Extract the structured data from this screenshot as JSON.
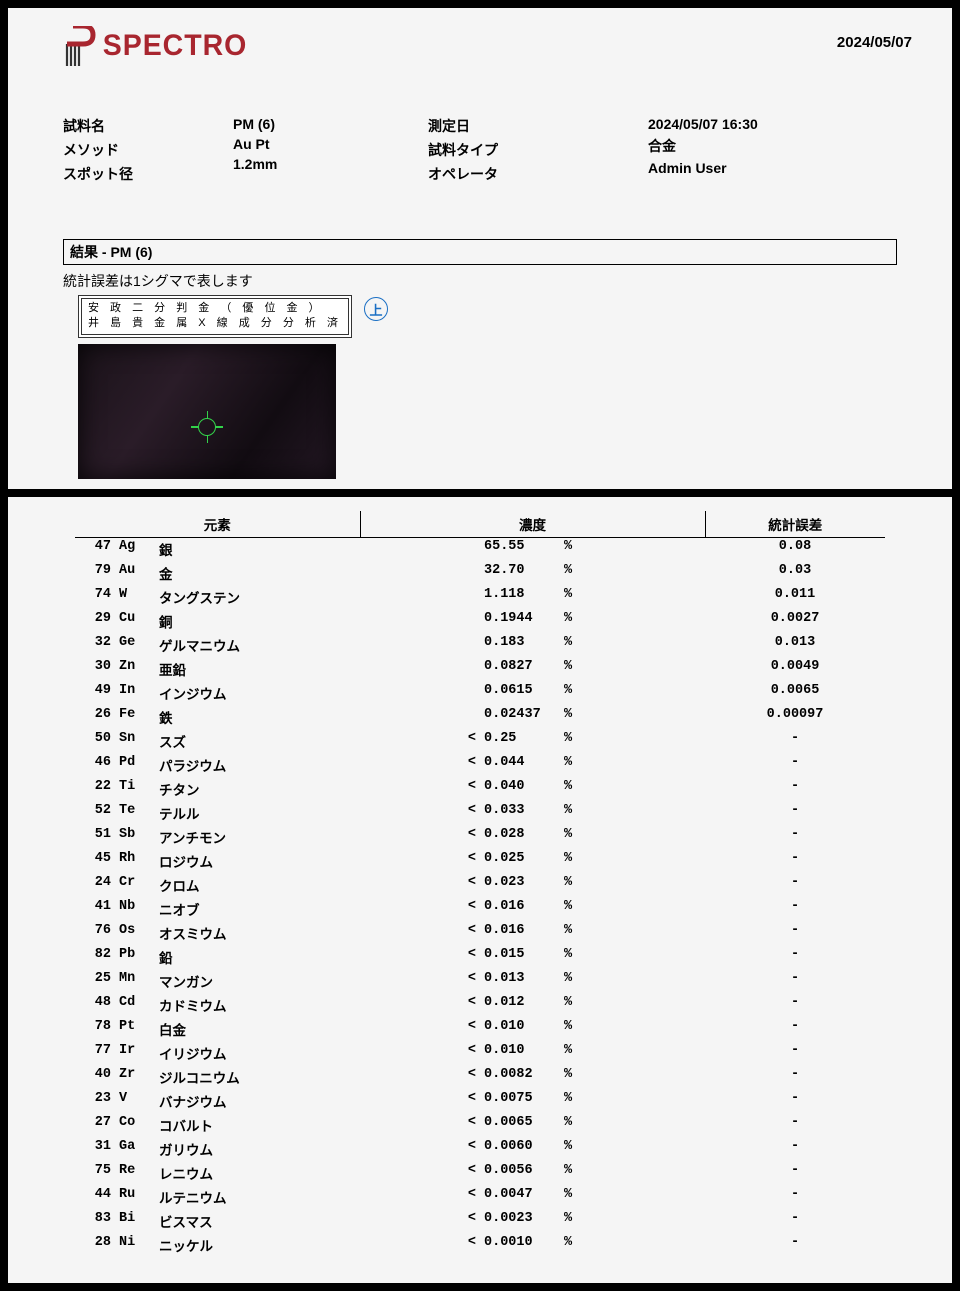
{
  "brand": "SPECTRO",
  "colors": {
    "brand": "#a8262f",
    "crosshair": "#33d24a",
    "badge": "#1a6fc4"
  },
  "header_date": "2024/05/07",
  "meta": {
    "labels_left": [
      "試料名",
      "メソッド",
      "スポット径"
    ],
    "values_left": [
      "PM (6)",
      "Au Pt",
      "1.2mm"
    ],
    "labels_right": [
      "測定日",
      "試料タイプ",
      "オペレータ"
    ],
    "values_right": [
      "2024/05/07 16:30",
      "合金",
      "Admin User"
    ]
  },
  "result_title": "結果 - PM (6)",
  "sigma_note": "統計誤差は1シグマで表します",
  "specimen_label_line1": "安 政 二 分 判 金 （ 優 位 金 ）",
  "specimen_label_line2": "井 島 貴 金 属 X 線 成 分 分 析 済",
  "badge_char": "上",
  "table": {
    "headers": {
      "element": "元素",
      "concentration": "濃度",
      "stat_error": "統計誤差"
    },
    "unit": "%",
    "rows": [
      {
        "z": "47",
        "sym": "Ag",
        "name": "銀",
        "lt": "",
        "val": "65.55",
        "err": "0.08"
      },
      {
        "z": "79",
        "sym": "Au",
        "name": "金",
        "lt": "",
        "val": "32.70",
        "err": "0.03"
      },
      {
        "z": "74",
        "sym": "W",
        "name": "タングステン",
        "lt": "",
        "val": "1.118",
        "err": "0.011"
      },
      {
        "z": "29",
        "sym": "Cu",
        "name": "銅",
        "lt": "",
        "val": "0.1944",
        "err": "0.0027"
      },
      {
        "z": "32",
        "sym": "Ge",
        "name": "ゲルマニウム",
        "lt": "",
        "val": "0.183",
        "err": "0.013"
      },
      {
        "z": "30",
        "sym": "Zn",
        "name": "亜鉛",
        "lt": "",
        "val": "0.0827",
        "err": "0.0049"
      },
      {
        "z": "49",
        "sym": "In",
        "name": "インジウム",
        "lt": "",
        "val": "0.0615",
        "err": "0.0065"
      },
      {
        "z": "26",
        "sym": "Fe",
        "name": "鉄",
        "lt": "",
        "val": "0.02437",
        "err": "0.00097"
      },
      {
        "z": "50",
        "sym": "Sn",
        "name": "スズ",
        "lt": "<",
        "val": "0.25",
        "err": "-"
      },
      {
        "z": "46",
        "sym": "Pd",
        "name": "パラジウム",
        "lt": "<",
        "val": "0.044",
        "err": "-"
      },
      {
        "z": "22",
        "sym": "Ti",
        "name": "チタン",
        "lt": "<",
        "val": "0.040",
        "err": "-"
      },
      {
        "z": "52",
        "sym": "Te",
        "name": "テルル",
        "lt": "<",
        "val": "0.033",
        "err": "-"
      },
      {
        "z": "51",
        "sym": "Sb",
        "name": "アンチモン",
        "lt": "<",
        "val": "0.028",
        "err": "-"
      },
      {
        "z": "45",
        "sym": "Rh",
        "name": "ロジウム",
        "lt": "<",
        "val": "0.025",
        "err": "-"
      },
      {
        "z": "24",
        "sym": "Cr",
        "name": "クロム",
        "lt": "<",
        "val": "0.023",
        "err": "-"
      },
      {
        "z": "41",
        "sym": "Nb",
        "name": "ニオブ",
        "lt": "<",
        "val": "0.016",
        "err": "-"
      },
      {
        "z": "76",
        "sym": "Os",
        "name": "オスミウム",
        "lt": "<",
        "val": "0.016",
        "err": "-"
      },
      {
        "z": "82",
        "sym": "Pb",
        "name": "鉛",
        "lt": "<",
        "val": "0.015",
        "err": "-"
      },
      {
        "z": "25",
        "sym": "Mn",
        "name": "マンガン",
        "lt": "<",
        "val": "0.013",
        "err": "-"
      },
      {
        "z": "48",
        "sym": "Cd",
        "name": "カドミウム",
        "lt": "<",
        "val": "0.012",
        "err": "-"
      },
      {
        "z": "78",
        "sym": "Pt",
        "name": "白金",
        "lt": "<",
        "val": "0.010",
        "err": "-"
      },
      {
        "z": "77",
        "sym": "Ir",
        "name": "イリジウム",
        "lt": "<",
        "val": "0.010",
        "err": "-"
      },
      {
        "z": "40",
        "sym": "Zr",
        "name": "ジルコニウム",
        "lt": "<",
        "val": "0.0082",
        "err": "-"
      },
      {
        "z": "23",
        "sym": "V",
        "name": "バナジウム",
        "lt": "<",
        "val": "0.0075",
        "err": "-"
      },
      {
        "z": "27",
        "sym": "Co",
        "name": "コバルト",
        "lt": "<",
        "val": "0.0065",
        "err": "-"
      },
      {
        "z": "31",
        "sym": "Ga",
        "name": "ガリウム",
        "lt": "<",
        "val": "0.0060",
        "err": "-"
      },
      {
        "z": "75",
        "sym": "Re",
        "name": "レニウム",
        "lt": "<",
        "val": "0.0056",
        "err": "-"
      },
      {
        "z": "44",
        "sym": "Ru",
        "name": "ルテニウム",
        "lt": "<",
        "val": "0.0047",
        "err": "-"
      },
      {
        "z": "83",
        "sym": "Bi",
        "name": "ビスマス",
        "lt": "<",
        "val": "0.0023",
        "err": "-"
      },
      {
        "z": "28",
        "sym": "Ni",
        "name": "ニッケル",
        "lt": "<",
        "val": "0.0010",
        "err": "-"
      }
    ]
  }
}
